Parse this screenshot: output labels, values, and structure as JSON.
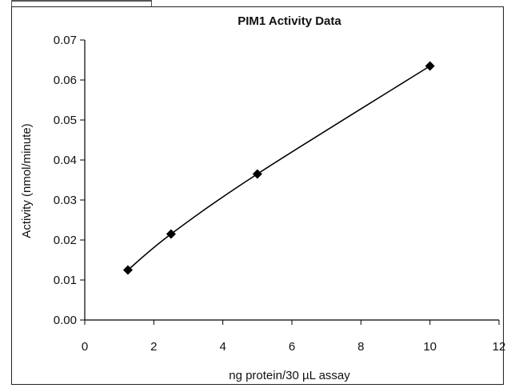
{
  "chart_data": {
    "type": "scatter",
    "title": "PIM1 Activity Data",
    "xlabel": "ng protein/30 µL assay",
    "ylabel": "Activity (nmol/minute)",
    "xlim": [
      0,
      12
    ],
    "ylim": [
      0,
      0.07
    ],
    "xticks": [
      0,
      2,
      4,
      6,
      8,
      10,
      12
    ],
    "yticks": [
      0.0,
      0.01,
      0.02,
      0.03,
      0.04,
      0.05,
      0.06,
      0.07
    ],
    "xtick_labels": [
      "0",
      "2",
      "4",
      "6",
      "8",
      "10",
      "12"
    ],
    "ytick_labels": [
      "0.00",
      "0.01",
      "0.02",
      "0.03",
      "0.04",
      "0.05",
      "0.06",
      "0.07"
    ],
    "grid": false,
    "legend": false,
    "series": [
      {
        "x": [
          1.25,
          2.5,
          5,
          10
        ],
        "y": [
          0.0125,
          0.0215,
          0.0365,
          0.0635
        ],
        "trendline": true,
        "color": "#000000"
      }
    ]
  }
}
